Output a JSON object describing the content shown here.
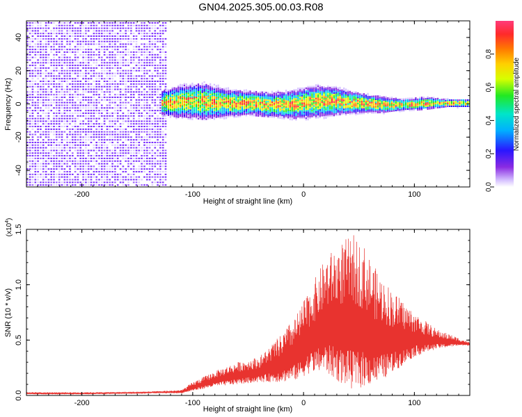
{
  "title": "GN04.2025.305.00.03.R08",
  "colors": {
    "spectrogram_bg_purple": "#7a2cff",
    "spectrogram_light": "#d9c8ff",
    "snr_line": "#e8332f",
    "colorbar": [
      "#ffffff",
      "#d6c2ff",
      "#8a2be2",
      "#2a16ff",
      "#00b0ff",
      "#00e5c8",
      "#22e822",
      "#d7ff00",
      "#ffd000",
      "#ff7a00",
      "#ff2a2a",
      "#ff3b7a"
    ]
  },
  "chart_data": [
    {
      "type": "heatmap",
      "name": "spectrogram",
      "title": "GN04.2025.305.00.03.R08",
      "xlabel": "Height of straight line (km)",
      "ylabel": "Frequency (Hz)",
      "xlim": [
        -250,
        150
      ],
      "ylim": [
        -50,
        50
      ],
      "xticks": [
        -200,
        -100,
        0,
        100
      ],
      "yticks": [
        -40,
        -20,
        0,
        20,
        40
      ],
      "xtick_labels": [
        "-200",
        "-100",
        "0",
        "100"
      ],
      "ytick_labels": [
        "-40",
        "-20",
        "0",
        "20",
        "40"
      ],
      "noise_region_x": [
        -250,
        -125
      ],
      "ridge": {
        "x": [
          -130,
          -110,
          -90,
          -70,
          -50,
          -30,
          -10,
          10,
          30,
          50,
          70,
          90,
          110,
          130,
          150
        ],
        "center_hz": [
          0,
          1,
          1,
          0,
          0,
          -1,
          -1,
          1,
          1,
          0,
          -1,
          -1,
          0,
          0,
          0
        ],
        "halfwidth_hz": [
          6,
          8,
          9,
          7,
          6,
          6,
          7,
          8,
          7,
          5,
          4,
          3,
          3,
          2,
          2
        ]
      },
      "colorbar": {
        "label": "Normalized spectral amplitude",
        "range": [
          0.0,
          1.0
        ],
        "ticks": [
          0.0,
          0.2,
          0.4,
          0.6,
          0.8
        ],
        "tick_labels": [
          "0.0",
          "0.2",
          "0.4",
          "0.6",
          "0.8"
        ]
      }
    },
    {
      "type": "line",
      "name": "snr",
      "xlabel": "Height of straight line (km)",
      "ylabel": "SNR (10 * v/v)",
      "multiplier_label": "(x10",
      "multiplier_exp": "4",
      "xlim": [
        -250,
        150
      ],
      "ylim": [
        0.0,
        1.5
      ],
      "xticks": [
        -200,
        -100,
        0,
        100
      ],
      "yticks": [
        0.0,
        0.5,
        1.0,
        1.5
      ],
      "xtick_labels": [
        "-200",
        "-100",
        "0",
        "100"
      ],
      "ytick_labels": [
        "0.0",
        "0.5",
        "1.0",
        "1.5"
      ],
      "envelope": {
        "x": [
          -250,
          -200,
          -150,
          -110,
          -100,
          -80,
          -60,
          -40,
          -20,
          -5,
          5,
          20,
          35,
          45,
          55,
          65,
          80,
          100,
          120,
          140,
          150
        ],
        "baseline": [
          0.01,
          0.01,
          0.02,
          0.02,
          0.04,
          0.08,
          0.1,
          0.12,
          0.12,
          0.14,
          0.2,
          0.2,
          0.1,
          0.05,
          0.08,
          0.1,
          0.2,
          0.35,
          0.42,
          0.45,
          0.45
        ],
        "peak": [
          0.03,
          0.03,
          0.03,
          0.05,
          0.12,
          0.22,
          0.3,
          0.35,
          0.55,
          0.75,
          0.95,
          1.25,
          1.4,
          1.45,
          1.35,
          1.15,
          0.95,
          0.75,
          0.6,
          0.52,
          0.48
        ]
      }
    }
  ]
}
